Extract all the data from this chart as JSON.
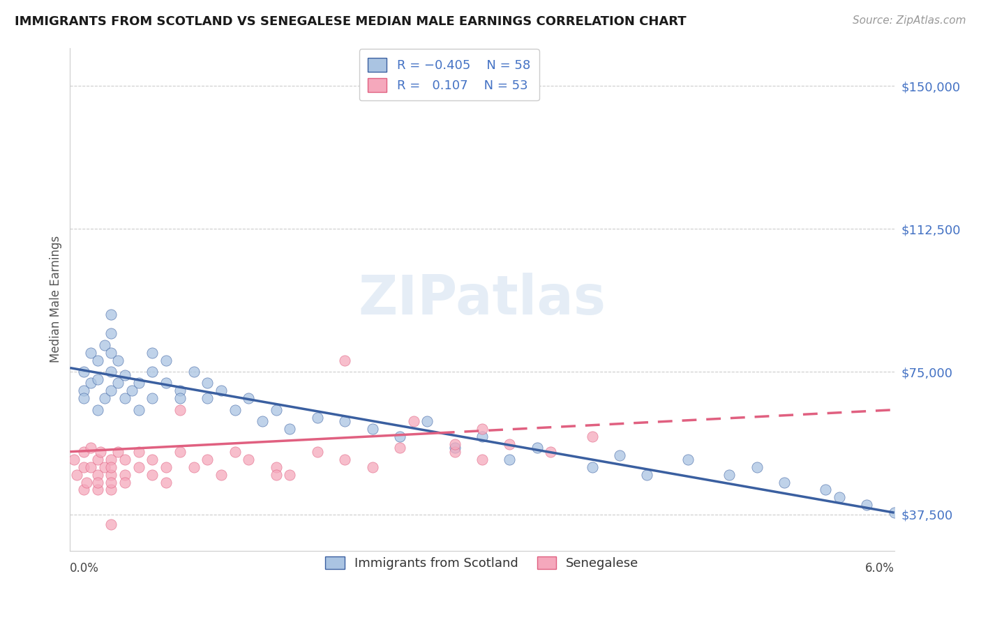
{
  "title": "IMMIGRANTS FROM SCOTLAND VS SENEGALESE MEDIAN MALE EARNINGS CORRELATION CHART",
  "source": "Source: ZipAtlas.com",
  "ylabel": "Median Male Earnings",
  "yticks": [
    37500,
    75000,
    112500,
    150000
  ],
  "ytick_labels": [
    "$37,500",
    "$75,000",
    "$112,500",
    "$150,000"
  ],
  "xmin": 0.0,
  "xmax": 0.06,
  "ymin": 28000,
  "ymax": 160000,
  "color_scotland": "#aac4e2",
  "color_senegal": "#f5a8bc",
  "color_line_scotland": "#3a5fa0",
  "color_line_senegal": "#e06080",
  "color_text_blue": "#4472c4",
  "color_title": "#1a1a1a",
  "background_color": "#ffffff",
  "grid_color": "#cccccc",
  "scotland_x": [
    0.001,
    0.001,
    0.001,
    0.0015,
    0.0015,
    0.002,
    0.002,
    0.002,
    0.0025,
    0.0025,
    0.003,
    0.003,
    0.003,
    0.003,
    0.003,
    0.0035,
    0.0035,
    0.004,
    0.004,
    0.0045,
    0.005,
    0.005,
    0.006,
    0.006,
    0.006,
    0.007,
    0.007,
    0.008,
    0.008,
    0.009,
    0.01,
    0.01,
    0.011,
    0.012,
    0.013,
    0.014,
    0.015,
    0.016,
    0.018,
    0.02,
    0.022,
    0.024,
    0.026,
    0.028,
    0.03,
    0.032,
    0.034,
    0.038,
    0.04,
    0.042,
    0.045,
    0.048,
    0.05,
    0.052,
    0.055,
    0.056,
    0.058,
    0.06
  ],
  "scotland_y": [
    70000,
    75000,
    68000,
    72000,
    80000,
    65000,
    73000,
    78000,
    68000,
    82000,
    70000,
    75000,
    80000,
    85000,
    90000,
    72000,
    78000,
    68000,
    74000,
    70000,
    65000,
    72000,
    68000,
    75000,
    80000,
    72000,
    78000,
    70000,
    68000,
    75000,
    68000,
    72000,
    70000,
    65000,
    68000,
    62000,
    65000,
    60000,
    63000,
    62000,
    60000,
    58000,
    62000,
    55000,
    58000,
    52000,
    55000,
    50000,
    53000,
    48000,
    52000,
    48000,
    50000,
    46000,
    44000,
    42000,
    40000,
    38000
  ],
  "senegal_x": [
    0.0003,
    0.0005,
    0.001,
    0.001,
    0.001,
    0.0012,
    0.0015,
    0.0015,
    0.002,
    0.002,
    0.002,
    0.002,
    0.0022,
    0.0025,
    0.003,
    0.003,
    0.003,
    0.003,
    0.003,
    0.0035,
    0.004,
    0.004,
    0.004,
    0.005,
    0.005,
    0.006,
    0.006,
    0.007,
    0.007,
    0.008,
    0.009,
    0.01,
    0.011,
    0.012,
    0.013,
    0.015,
    0.016,
    0.018,
    0.02,
    0.022,
    0.024,
    0.028,
    0.03,
    0.032,
    0.035,
    0.038,
    0.02,
    0.03,
    0.015,
    0.025,
    0.008,
    0.003,
    0.028
  ],
  "senegal_y": [
    52000,
    48000,
    54000,
    50000,
    44000,
    46000,
    50000,
    55000,
    44000,
    48000,
    52000,
    46000,
    54000,
    50000,
    48000,
    44000,
    52000,
    46000,
    50000,
    54000,
    48000,
    52000,
    46000,
    50000,
    54000,
    48000,
    52000,
    50000,
    46000,
    54000,
    50000,
    52000,
    48000,
    54000,
    52000,
    50000,
    48000,
    54000,
    52000,
    50000,
    55000,
    54000,
    52000,
    56000,
    54000,
    58000,
    78000,
    60000,
    48000,
    62000,
    65000,
    35000,
    56000
  ],
  "sc_line_x0": 0.0,
  "sc_line_x1": 0.06,
  "sc_line_y0": 76000,
  "sc_line_y1": 38000,
  "sen_line_x0": 0.0,
  "sen_line_x1": 0.06,
  "sen_line_y0": 54000,
  "sen_line_y1": 65000
}
